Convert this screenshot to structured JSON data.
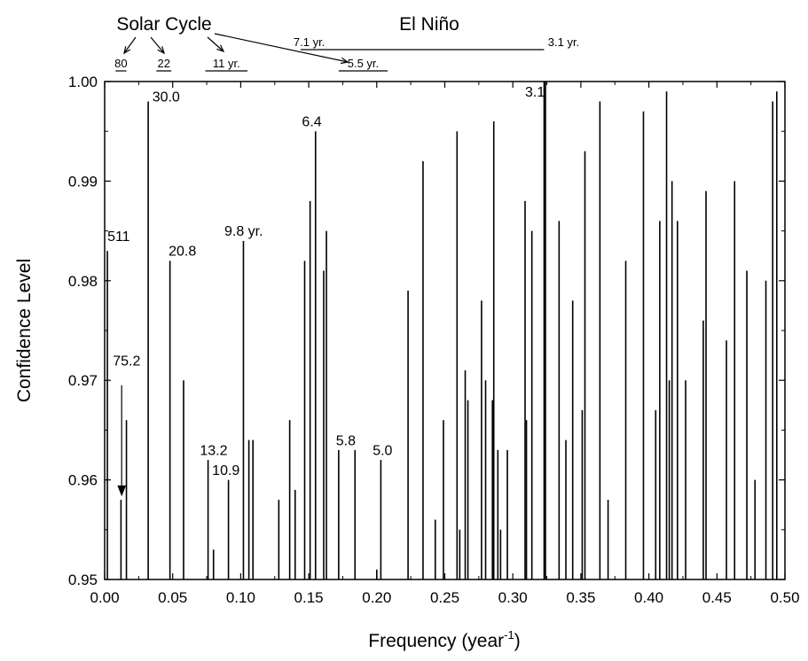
{
  "chart_data": {
    "type": "bar",
    "title": "",
    "xlabel": "Frequency (year",
    "xlabel_superscript": "-1",
    "xlabel_suffix": ")",
    "ylabel": "Confidence Level",
    "xlim": [
      0.0,
      0.5
    ],
    "ylim": [
      0.95,
      1.0
    ],
    "xticks": [
      "0.00",
      "0.05",
      "0.10",
      "0.15",
      "0.20",
      "0.25",
      "0.30",
      "0.35",
      "0.40",
      "0.45",
      "0.50"
    ],
    "yticks": [
      "0.95",
      "0.96",
      "0.97",
      "0.98",
      "0.99",
      "1.00"
    ],
    "grid": false,
    "x": [
      0.002,
      0.012,
      0.016,
      0.032,
      0.048,
      0.058,
      0.076,
      0.08,
      0.091,
      0.102,
      0.106,
      0.109,
      0.128,
      0.136,
      0.14,
      0.147,
      0.151,
      0.155,
      0.161,
      0.163,
      0.172,
      0.184,
      0.2,
      0.203,
      0.223,
      0.234,
      0.243,
      0.249,
      0.259,
      0.261,
      0.265,
      0.267,
      0.277,
      0.28,
      0.285,
      0.286,
      0.289,
      0.291,
      0.296,
      0.309,
      0.31,
      0.314,
      0.323,
      0.324,
      0.334,
      0.339,
      0.344,
      0.351,
      0.353,
      0.364,
      0.37,
      0.383,
      0.396,
      0.405,
      0.408,
      0.413,
      0.415,
      0.417,
      0.421,
      0.427,
      0.44,
      0.442,
      0.457,
      0.463,
      0.472,
      0.478,
      0.486,
      0.491,
      0.494
    ],
    "y": [
      0.983,
      0.958,
      0.966,
      0.998,
      0.982,
      0.97,
      0.962,
      0.953,
      0.96,
      0.984,
      0.964,
      0.964,
      0.958,
      0.966,
      0.959,
      0.982,
      0.988,
      0.995,
      0.981,
      0.985,
      0.963,
      0.963,
      0.951,
      0.962,
      0.979,
      0.992,
      0.956,
      0.966,
      0.995,
      0.955,
      0.971,
      0.968,
      0.978,
      0.97,
      0.968,
      0.996,
      0.963,
      0.955,
      0.963,
      0.988,
      0.966,
      0.985,
      1.0,
      1.0,
      0.986,
      0.964,
      0.978,
      0.967,
      0.993,
      0.998,
      0.958,
      0.982,
      0.997,
      0.967,
      0.986,
      0.999,
      0.97,
      0.99,
      0.986,
      0.97,
      0.976,
      0.989,
      0.974,
      0.99,
      0.981,
      0.96,
      0.98,
      0.998,
      0.999
    ],
    "annotations": [
      {
        "text": "511",
        "x": 0.002,
        "y": 0.984
      },
      {
        "text": "75.2",
        "x": 0.006,
        "y": 0.9715
      },
      {
        "text": "30.0",
        "x": 0.035,
        "y": 0.998
      },
      {
        "text": "20.8",
        "x": 0.047,
        "y": 0.9825
      },
      {
        "text": "13.2",
        "x": 0.07,
        "y": 0.9625
      },
      {
        "text": "10.9",
        "x": 0.079,
        "y": 0.9605
      },
      {
        "text": "9.8 yr.",
        "x": 0.088,
        "y": 0.9845
      },
      {
        "text": "6.4",
        "x": 0.145,
        "y": 0.9955
      },
      {
        "text": "5.8",
        "x": 0.17,
        "y": 0.9635
      },
      {
        "text": "5.0",
        "x": 0.197,
        "y": 0.9625
      },
      {
        "text": "3.1",
        "x": 0.309,
        "y": 0.9985
      }
    ],
    "period_markers": {
      "group_labels": [
        "Solar Cycle",
        "El Niño"
      ],
      "marks": [
        {
          "text": "80",
          "x1": 0.008,
          "x2": 0.016
        },
        {
          "text": "22",
          "x1": 0.038,
          "x2": 0.049
        },
        {
          "text": "11 yr.",
          "x1": 0.074,
          "x2": 0.105
        },
        {
          "text": "5.5 yr.",
          "x1": 0.172,
          "x2": 0.208
        },
        {
          "text": "7.1 yr.",
          "x1": 0.144,
          "x2": 0.323,
          "end_text": "3.1 yr."
        }
      ]
    }
  }
}
